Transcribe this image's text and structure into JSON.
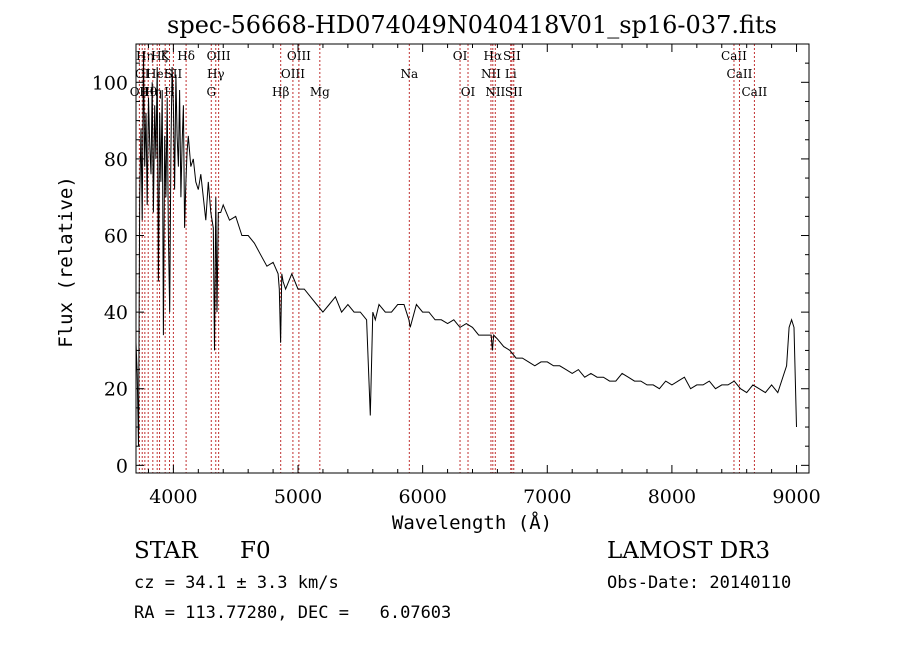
{
  "chart_data": {
    "type": "line",
    "title": "spec-56668-HD074049N040418V01_sp16-037.fits",
    "xlabel": "Wavelength (Å)",
    "ylabel": "Flux (relative)",
    "xlim": [
      3700,
      9100
    ],
    "ylim": [
      -2,
      110
    ],
    "xticks": [
      4000,
      5000,
      6000,
      7000,
      8000,
      9000
    ],
    "yticks": [
      0,
      20,
      40,
      60,
      80,
      100
    ],
    "xtick_labels": [
      "4000",
      "5000",
      "6000",
      "7000",
      "8000",
      "9000"
    ],
    "ytick_labels": [
      "0",
      "20",
      "40",
      "60",
      "80",
      "100"
    ],
    "grid": false,
    "series": [
      {
        "name": "flux",
        "x": [
          3700,
          3710,
          3720,
          3730,
          3740,
          3750,
          3760,
          3770,
          3780,
          3790,
          3800,
          3810,
          3820,
          3830,
          3840,
          3850,
          3860,
          3870,
          3880,
          3890,
          3900,
          3910,
          3920,
          3930,
          3940,
          3950,
          3960,
          3970,
          3980,
          3990,
          4000,
          4010,
          4020,
          4030,
          4040,
          4050,
          4060,
          4070,
          4080,
          4090,
          4100,
          4110,
          4120,
          4140,
          4160,
          4180,
          4200,
          4220,
          4240,
          4260,
          4280,
          4300,
          4320,
          4330,
          4340,
          4350,
          4360,
          4380,
          4400,
          4450,
          4500,
          4550,
          4600,
          4650,
          4700,
          4750,
          4800,
          4840,
          4850,
          4860,
          4870,
          4880,
          4900,
          4950,
          5000,
          5050,
          5100,
          5150,
          5200,
          5250,
          5300,
          5350,
          5400,
          5450,
          5500,
          5550,
          5580,
          5600,
          5620,
          5650,
          5700,
          5750,
          5800,
          5850,
          5890,
          5900,
          5950,
          6000,
          6050,
          6100,
          6150,
          6200,
          6250,
          6300,
          6350,
          6400,
          6450,
          6500,
          6550,
          6560,
          6570,
          6600,
          6650,
          6700,
          6750,
          6800,
          6850,
          6900,
          6950,
          7000,
          7050,
          7100,
          7150,
          7200,
          7250,
          7300,
          7350,
          7400,
          7450,
          7500,
          7550,
          7600,
          7650,
          7700,
          7750,
          7800,
          7850,
          7900,
          7950,
          8000,
          8050,
          8100,
          8150,
          8200,
          8250,
          8300,
          8350,
          8400,
          8450,
          8500,
          8550,
          8600,
          8650,
          8700,
          8750,
          8800,
          8850,
          8900,
          8920,
          8940,
          8960,
          8980,
          9000
        ],
        "values": [
          32,
          24,
          5,
          70,
          88,
          64,
          108,
          78,
          92,
          68,
          96,
          84,
          76,
          100,
          66,
          94,
          80,
          104,
          48,
          92,
          74,
          98,
          34,
          86,
          70,
          96,
          60,
          40,
          82,
          104,
          94,
          72,
          102,
          86,
          78,
          98,
          70,
          84,
          94,
          62,
          74,
          82,
          86,
          78,
          80,
          74,
          72,
          76,
          70,
          64,
          74,
          66,
          62,
          30,
          70,
          40,
          66,
          66,
          68,
          64,
          65,
          60,
          60,
          58,
          55,
          52,
          53,
          50,
          46,
          32,
          50,
          48,
          46,
          50,
          46,
          46,
          44,
          42,
          40,
          42,
          44,
          40,
          42,
          40,
          40,
          38,
          13,
          40,
          38,
          42,
          40,
          40,
          42,
          42,
          38,
          36,
          42,
          40,
          40,
          38,
          38,
          37,
          38,
          36,
          37,
          36,
          34,
          34,
          34,
          30,
          34,
          33,
          31,
          30,
          28,
          28,
          27,
          26,
          27,
          27,
          26,
          26,
          25,
          24,
          25,
          23,
          24,
          23,
          23,
          22,
          22,
          24,
          23,
          22,
          22,
          21,
          21,
          20,
          22,
          21,
          22,
          23,
          20,
          21,
          21,
          22,
          20,
          21,
          21,
          22,
          20,
          19,
          21,
          20,
          19,
          21,
          19,
          24,
          26,
          36,
          38,
          36,
          10
        ]
      }
    ],
    "line_markers": [
      {
        "wavelength": 3727,
        "label": "OII",
        "row": 2
      },
      {
        "wavelength": 3750,
        "label": "OI",
        "row": 1
      },
      {
        "wavelength": 3771,
        "label": "Hη",
        "row": 0
      },
      {
        "wavelength": 3798,
        "label": "Hθ",
        "row": 2
      },
      {
        "wavelength": 3835,
        "label": "Hη",
        "row": 2
      },
      {
        "wavelength": 3870,
        "label": "HeI",
        "row": 1
      },
      {
        "wavelength": 3889,
        "label": "Hζ",
        "row": 0
      },
      {
        "wavelength": 3934,
        "label": "K",
        "row": 0
      },
      {
        "wavelength": 3969,
        "label": "H",
        "row": 2
      },
      {
        "wavelength": 4000,
        "label": "SII",
        "row": 1
      },
      {
        "wavelength": 4102,
        "label": "Hδ",
        "row": 0
      },
      {
        "wavelength": 4304,
        "label": "G",
        "row": 2
      },
      {
        "wavelength": 4340,
        "label": "Hγ",
        "row": 1
      },
      {
        "wavelength": 4363,
        "label": "OIII",
        "row": 0
      },
      {
        "wavelength": 4861,
        "label": "Hβ",
        "row": 2
      },
      {
        "wavelength": 4959,
        "label": "OIII",
        "row": 1
      },
      {
        "wavelength": 5007,
        "label": "OIII",
        "row": 0
      },
      {
        "wavelength": 5175,
        "label": "Mg",
        "row": 2
      },
      {
        "wavelength": 5893,
        "label": "Na",
        "row": 1
      },
      {
        "wavelength": 6300,
        "label": "OI",
        "row": 0
      },
      {
        "wavelength": 6364,
        "label": "OI",
        "row": 2
      },
      {
        "wavelength": 6548,
        "label": "NII",
        "row": 1
      },
      {
        "wavelength": 6563,
        "label": "Hα",
        "row": 0
      },
      {
        "wavelength": 6583,
        "label": "NII",
        "row": 2
      },
      {
        "wavelength": 6707,
        "label": "Li",
        "row": 1
      },
      {
        "wavelength": 6716,
        "label": "SII",
        "row": 0
      },
      {
        "wavelength": 6731,
        "label": "SII",
        "row": 2
      },
      {
        "wavelength": 8498,
        "label": "CaII",
        "row": 0
      },
      {
        "wavelength": 8542,
        "label": "CaII",
        "row": 1
      },
      {
        "wavelength": 8662,
        "label": "CaII",
        "row": 2
      }
    ]
  },
  "info": {
    "object_class": "STAR",
    "subclass": "F0",
    "survey": "LAMOST DR3",
    "redshift_line": "cz = 34.1 ± 3.3 km/s",
    "obs_date_line": "Obs-Date: 20140110",
    "coords_line": "RA = 113.77280, DEC =   6.07603"
  }
}
